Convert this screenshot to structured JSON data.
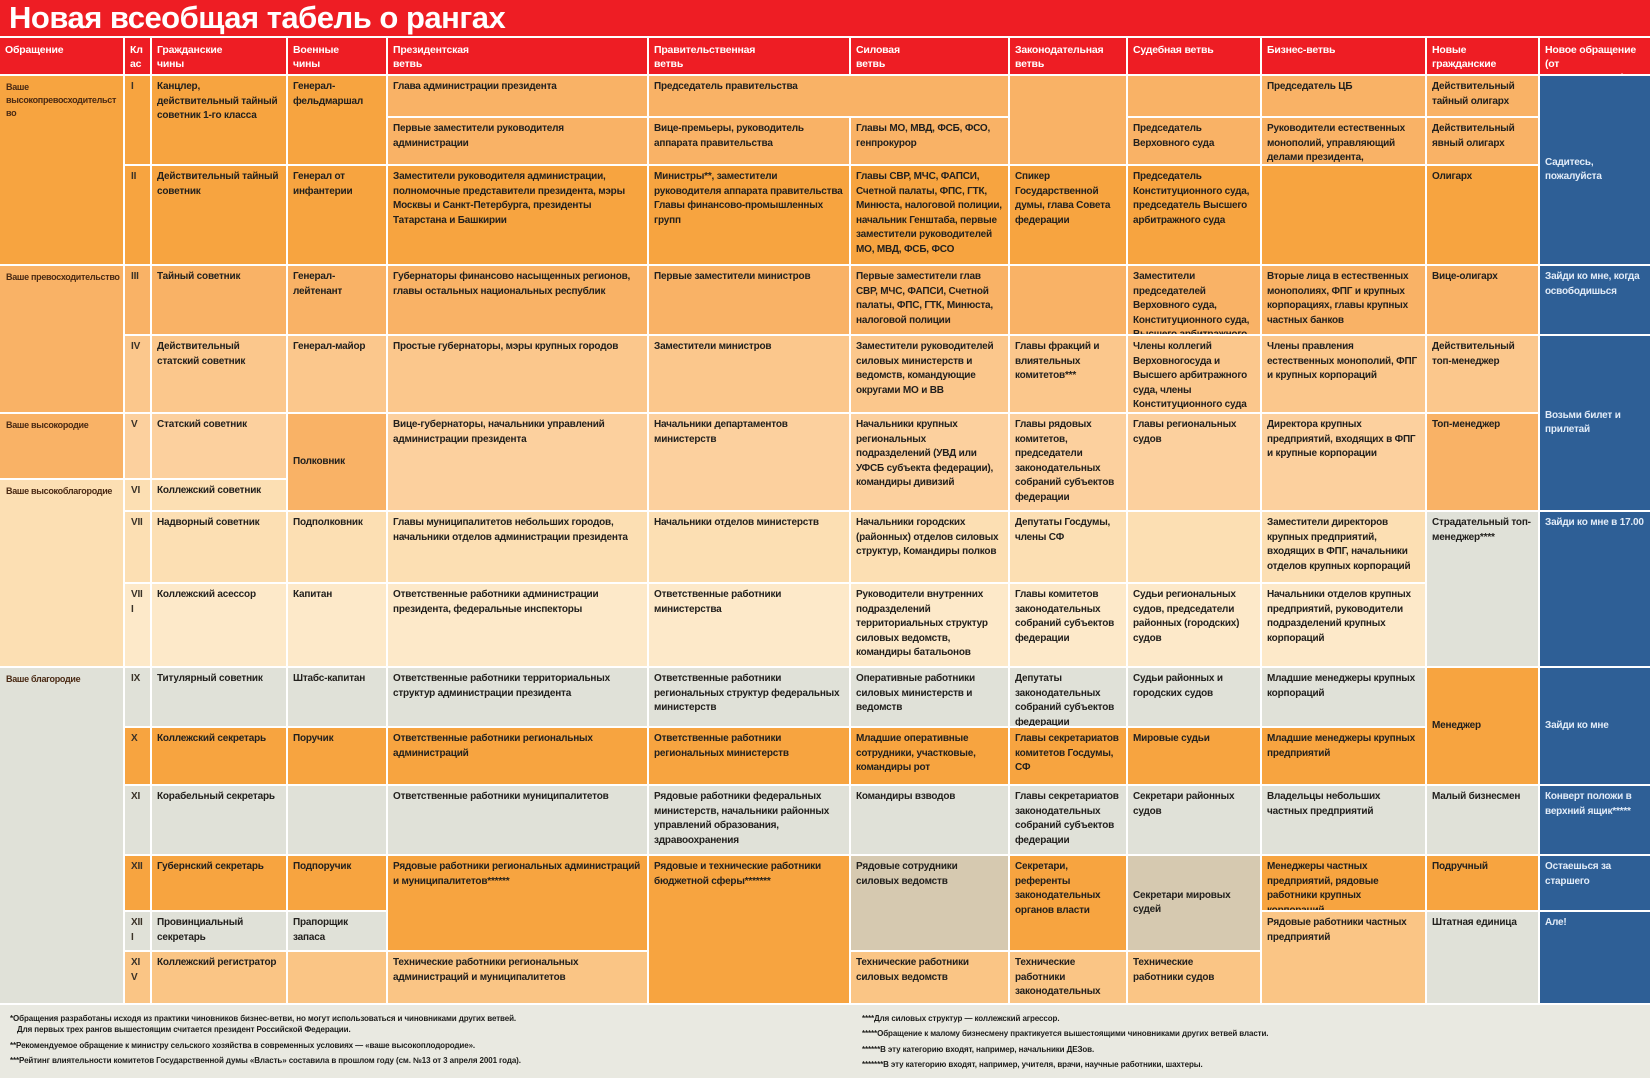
{
  "title": "Новая всеобщая табель о рангах",
  "colors": {
    "tones": {
      "red": "#EE1D24",
      "o1": "#F7A440",
      "o2": "#F9B266",
      "o3": "#FBC78C",
      "o4": "#FCD09E",
      "o5": "#FCDFB3",
      "o6": "#FDE9C9",
      "ox": "#FAC585",
      "gray": "#E0E1D8",
      "tan": "#D6C9B0",
      "blue": "#2E5F96"
    },
    "header_text": "#FFFFFF",
    "blue_text": "#E2ECF8"
  },
  "columns": [
    {
      "id": "obraschenie",
      "label": "Обращение"
    },
    {
      "id": "klass-china",
      "label": "Класс\nчина"
    },
    {
      "id": "grazhdanskie-chiny",
      "label": "Гражданские\nчины"
    },
    {
      "id": "voennye-chiny",
      "label": "Военные\nчины"
    },
    {
      "id": "prezidentskaya-vetv",
      "label": "Президентская\nветвь"
    },
    {
      "id": "pravitelstvennaya-vetv",
      "label": "Правительственная\nветвь"
    },
    {
      "id": "silovaya-vetv",
      "label": "Силовая\nветвь"
    },
    {
      "id": "zakonodatelnaya-vetv",
      "label": "Законодательная\nветвь"
    },
    {
      "id": "sudebnaya-vetv",
      "label": "Судебная ветвь"
    },
    {
      "id": "biznes-vetv",
      "label": "Бизнес-ветвь"
    },
    {
      "id": "novye-grazhdanskie-chiny",
      "label": "Новые гражданские\nчины"
    },
    {
      "id": "novoe-obraschenie",
      "label": "Новое обращение\n(от вышестоящего)*"
    }
  ],
  "cells": [
    {
      "c": 1,
      "r": 2,
      "rs": 3,
      "t": "o1",
      "x": "Ваше высокопревосходительство"
    },
    {
      "c": 1,
      "r": 5,
      "rs": 2,
      "t": "o2",
      "x": "Ваше превосходительство"
    },
    {
      "c": 1,
      "r": 7,
      "t": "o2",
      "x": "Ваше высокородие"
    },
    {
      "c": 1,
      "r": 8,
      "rs": 3,
      "t": "o5",
      "x": "Ваше высокоблагородие"
    },
    {
      "c": 1,
      "r": 11,
      "rs": 6,
      "t": "gray",
      "x": "Ваше благородие"
    },
    {
      "c": 2,
      "r": 2,
      "rs": 2,
      "t": "o1",
      "x": "I"
    },
    {
      "c": 2,
      "r": 4,
      "t": "o1",
      "x": "II"
    },
    {
      "c": 2,
      "r": 5,
      "t": "o2",
      "x": "III"
    },
    {
      "c": 2,
      "r": 6,
      "t": "o3",
      "x": "IV"
    },
    {
      "c": 2,
      "r": 7,
      "t": "o4",
      "x": "V"
    },
    {
      "c": 2,
      "r": 8,
      "t": "o5",
      "x": "VI"
    },
    {
      "c": 2,
      "r": 9,
      "t": "o5",
      "x": "VII"
    },
    {
      "c": 2,
      "r": 10,
      "t": "o6",
      "x": "VIII"
    },
    {
      "c": 2,
      "r": 11,
      "t": "gray",
      "x": "IX"
    },
    {
      "c": 2,
      "r": 12,
      "t": "o1",
      "x": "X"
    },
    {
      "c": 2,
      "r": 13,
      "t": "gray",
      "x": "XI"
    },
    {
      "c": 2,
      "r": 14,
      "t": "o1",
      "x": "XII"
    },
    {
      "c": 2,
      "r": 15,
      "t": "gray",
      "x": "XIII"
    },
    {
      "c": 2,
      "r": 16,
      "t": "ox",
      "x": "XIV"
    },
    {
      "c": 3,
      "r": 2,
      "rs": 2,
      "t": "o1",
      "x": "Канцлер, действительный тайный советник 1-го класса"
    },
    {
      "c": 3,
      "r": 4,
      "t": "o1",
      "x": "Действительный тайный советник"
    },
    {
      "c": 3,
      "r": 5,
      "t": "o2",
      "x": "Тайный советник"
    },
    {
      "c": 3,
      "r": 6,
      "t": "o3",
      "x": "Действительный статский советник"
    },
    {
      "c": 3,
      "r": 7,
      "t": "o4",
      "x": "Статский советник"
    },
    {
      "c": 3,
      "r": 8,
      "t": "o5",
      "x": "Коллежский советник"
    },
    {
      "c": 3,
      "r": 9,
      "t": "o5",
      "x": "Надворный советник"
    },
    {
      "c": 3,
      "r": 10,
      "t": "o6",
      "x": "Коллежский асессор"
    },
    {
      "c": 3,
      "r": 11,
      "t": "gray",
      "x": "Титулярный советник"
    },
    {
      "c": 3,
      "r": 12,
      "t": "o1",
      "x": "Коллежский секретарь"
    },
    {
      "c": 3,
      "r": 13,
      "t": "gray",
      "x": "Корабельный секретарь"
    },
    {
      "c": 3,
      "r": 14,
      "t": "o1",
      "x": "Губернский секретарь"
    },
    {
      "c": 3,
      "r": 15,
      "t": "gray",
      "x": "Провинциальный секретарь"
    },
    {
      "c": 3,
      "r": 16,
      "t": "ox",
      "x": "Коллежский регистратор"
    },
    {
      "c": 4,
      "r": 2,
      "rs": 2,
      "t": "o1",
      "x": "Генерал-фельдмаршал"
    },
    {
      "c": 4,
      "r": 4,
      "t": "o1",
      "x": "Генерал от инфантерии"
    },
    {
      "c": 4,
      "r": 5,
      "t": "o2",
      "x": "Генерал-лейтенант"
    },
    {
      "c": 4,
      "r": 6,
      "t": "o3",
      "x": "Генерал-майор"
    },
    {
      "c": 4,
      "r": 7,
      "rs": 2,
      "t": "o2",
      "vc": 1,
      "x": "Полковник"
    },
    {
      "c": 4,
      "r": 9,
      "t": "o5",
      "x": "Подполковник"
    },
    {
      "c": 4,
      "r": 10,
      "t": "o6",
      "x": "Капитан"
    },
    {
      "c": 4,
      "r": 11,
      "t": "gray",
      "x": "Штабс-капитан"
    },
    {
      "c": 4,
      "r": 12,
      "t": "o1",
      "x": "Поручик"
    },
    {
      "c": 4,
      "r": 13,
      "t": "gray",
      "x": ""
    },
    {
      "c": 4,
      "r": 14,
      "t": "o1",
      "x": "Подпоручик"
    },
    {
      "c": 4,
      "r": 15,
      "t": "gray",
      "x": "Прапорщик запаса"
    },
    {
      "c": 4,
      "r": 16,
      "t": "ox",
      "x": ""
    },
    {
      "c": 5,
      "r": 2,
      "t": "o2",
      "x": "Глава администрации президента"
    },
    {
      "c": 5,
      "r": 3,
      "t": "o2",
      "x": "Первые заместители руководителя администрации"
    },
    {
      "c": 5,
      "r": 4,
      "t": "o1",
      "x": "Заместители руководителя администрации, полномочные представители президента, мэры Москвы и Санкт-Петербурга, президенты Татарстана и Башкирии"
    },
    {
      "c": 5,
      "r": 5,
      "t": "o2",
      "x": "Губернаторы финансово насыщенных регионов, главы остальных национальных республик"
    },
    {
      "c": 5,
      "r": 6,
      "t": "o3",
      "x": "Простые губернаторы, мэры крупных городов"
    },
    {
      "c": 5,
      "r": 7,
      "rs": 2,
      "t": "o4",
      "x": "Вице-губернаторы, начальники управлений администрации президента"
    },
    {
      "c": 5,
      "r": 9,
      "t": "o5",
      "x": "Главы муниципалитетов небольших городов, начальники отделов администрации президента"
    },
    {
      "c": 5,
      "r": 10,
      "t": "o6",
      "x": "Ответственные работники администрации президента, федеральные инспекторы"
    },
    {
      "c": 5,
      "r": 11,
      "t": "gray",
      "x": "Ответственные работники территориальных структур администрации президента"
    },
    {
      "c": 5,
      "r": 12,
      "t": "o1",
      "x": "Ответственные работники региональных администраций"
    },
    {
      "c": 5,
      "r": 13,
      "t": "gray",
      "x": "Ответственные работники муниципалитетов"
    },
    {
      "c": 5,
      "r": 14,
      "rs": 2,
      "t": "o1",
      "x": "Рядовые работники региональных администраций и муниципалитетов******"
    },
    {
      "c": 5,
      "r": 16,
      "t": "ox",
      "x": "Технические работники региональных администраций и муниципалитетов"
    },
    {
      "c": 6,
      "r": 2,
      "cs": 2,
      "t": "o2",
      "x": "Председатель правительства"
    },
    {
      "c": 6,
      "r": 3,
      "t": "o2",
      "x": "Вице-премьеры, руководитель аппарата правительства"
    },
    {
      "c": 6,
      "r": 4,
      "t": "o1",
      "x": "Министры**, заместители руководителя аппарата правительства\nГлавы финансово-промышленных групп"
    },
    {
      "c": 6,
      "r": 5,
      "t": "o2",
      "x": "Первые заместители министров"
    },
    {
      "c": 6,
      "r": 6,
      "t": "o3",
      "x": "Заместители министров"
    },
    {
      "c": 6,
      "r": 7,
      "rs": 2,
      "t": "o4",
      "x": "Начальники департаментов министерств"
    },
    {
      "c": 6,
      "r": 9,
      "t": "o5",
      "x": "Начальники отделов министерств"
    },
    {
      "c": 6,
      "r": 10,
      "t": "o6",
      "x": "Ответственные работники министерства"
    },
    {
      "c": 6,
      "r": 11,
      "t": "gray",
      "x": "Ответственные работники региональных структур федеральных министерств"
    },
    {
      "c": 6,
      "r": 12,
      "t": "o1",
      "x": "Ответственные работники региональных министерств"
    },
    {
      "c": 6,
      "r": 13,
      "t": "gray",
      "x": "Рядовые работники федеральных министерств, начальники районных управлений образования, здравоохранения"
    },
    {
      "c": 6,
      "r": 14,
      "rs": 3,
      "t": "o1",
      "x": "Рядовые и технические работники бюджетной сферы*******"
    },
    {
      "c": 7,
      "r": 3,
      "t": "o2",
      "x": "Главы МО, МВД, ФСБ, ФСО, генпрокурор"
    },
    {
      "c": 7,
      "r": 4,
      "t": "o1",
      "x": "Главы СВР, МЧС, ФАПСИ, Счетной палаты, ФПС, ГТК, Минюста, налоговой полиции, начальник Генштаба, первые заместители руководителей МО, МВД, ФСБ, ФСО"
    },
    {
      "c": 7,
      "r": 5,
      "t": "o2",
      "x": "Первые заместители глав СВР, МЧС, ФАПСИ, Счетной палаты, ФПС, ГТК, Минюста, налоговой полиции"
    },
    {
      "c": 7,
      "r": 6,
      "t": "o3",
      "x": "Заместители руководителей силовых министерств и ведомств, командующие округами МО и ВВ"
    },
    {
      "c": 7,
      "r": 7,
      "rs": 2,
      "t": "o4",
      "x": "Начальники крупных региональных подразделений (УВД или УФСБ субъекта федерации), командиры дивизий"
    },
    {
      "c": 7,
      "r": 9,
      "t": "o5",
      "x": "Начальники городских (районных) отделов силовых структур, Командиры полков"
    },
    {
      "c": 7,
      "r": 10,
      "t": "o6",
      "x": "Руководители внутренних подразделений территориальных структур силовых ведомств, командиры батальонов"
    },
    {
      "c": 7,
      "r": 11,
      "t": "gray",
      "x": "Оперативные работники силовых министерств и ведомств"
    },
    {
      "c": 7,
      "r": 12,
      "t": "o1",
      "x": "Младшие оперативные сотрудники, участковые, командиры рот"
    },
    {
      "c": 7,
      "r": 13,
      "t": "gray",
      "x": "Командиры взводов"
    },
    {
      "c": 7,
      "r": 14,
      "rs": 2,
      "t": "tan",
      "x": "Рядовые сотрудники силовых ведомств"
    },
    {
      "c": 7,
      "r": 16,
      "t": "ox",
      "x": "Технические работники силовых ведомств"
    },
    {
      "c": 8,
      "r": 2,
      "rs": 2,
      "t": "o2",
      "x": ""
    },
    {
      "c": 8,
      "r": 4,
      "t": "o1",
      "x": "Спикер Государственной думы, глава Совета федерации"
    },
    {
      "c": 8,
      "r": 5,
      "t": "o2",
      "x": ""
    },
    {
      "c": 8,
      "r": 6,
      "t": "o3",
      "x": "Главы фракций и влиятельных комитетов***"
    },
    {
      "c": 8,
      "r": 7,
      "rs": 2,
      "t": "o4",
      "x": "Главы рядовых комитетов, председатели законодательных собраний субъектов федерации"
    },
    {
      "c": 8,
      "r": 9,
      "t": "o5",
      "x": "Депутаты Госдумы, члены СФ"
    },
    {
      "c": 8,
      "r": 10,
      "t": "o6",
      "x": "Главы комитетов законодательных собраний субъектов федерации"
    },
    {
      "c": 8,
      "r": 11,
      "t": "gray",
      "x": "Депутаты законодательных собраний субъектов федерации"
    },
    {
      "c": 8,
      "r": 12,
      "t": "o1",
      "x": "Главы секретариатов комитетов Госдумы, СФ"
    },
    {
      "c": 8,
      "r": 13,
      "t": "gray",
      "x": "Главы секретариатов законодательных собраний субъектов федерации"
    },
    {
      "c": 8,
      "r": 14,
      "rs": 2,
      "t": "o1",
      "x": "Секретари, референты законодательных органов власти"
    },
    {
      "c": 8,
      "r": 16,
      "t": "ox",
      "x": "Технические работники законодательных органов власти"
    },
    {
      "c": 9,
      "r": 2,
      "t": "o2",
      "x": ""
    },
    {
      "c": 9,
      "r": 3,
      "t": "o2",
      "x": "Председатель Верховного суда"
    },
    {
      "c": 9,
      "r": 4,
      "t": "o1",
      "x": "Председатель Конституционного суда, председатель Высшего арбитражного суда"
    },
    {
      "c": 9,
      "r": 5,
      "t": "o2",
      "x": "Заместители председателей Верховного суда, Конституционного суда, Высшего арбитражного суда"
    },
    {
      "c": 9,
      "r": 6,
      "t": "o3",
      "x": "Члены коллегий Верховногосуда и Высшего арбитражного суда, члены Конституционного суда"
    },
    {
      "c": 9,
      "r": 7,
      "rs": 2,
      "t": "o4",
      "x": "Главы региональных судов"
    },
    {
      "c": 9,
      "r": 9,
      "t": "o5",
      "x": ""
    },
    {
      "c": 9,
      "r": 10,
      "t": "o6",
      "x": "Судьи региональных судов, председатели районных (городских) судов"
    },
    {
      "c": 9,
      "r": 11,
      "t": "gray",
      "x": "Судьи районных и городских судов"
    },
    {
      "c": 9,
      "r": 12,
      "t": "o1",
      "x": "Мировые судьи"
    },
    {
      "c": 9,
      "r": 13,
      "t": "gray",
      "x": "Секретари районных судов"
    },
    {
      "c": 9,
      "r": 14,
      "rs": 2,
      "t": "tan",
      "vc": 1,
      "x": "Секретари мировых судей"
    },
    {
      "c": 9,
      "r": 16,
      "t": "ox",
      "x": "Технические\nработники судов"
    },
    {
      "c": 10,
      "r": 2,
      "t": "o2",
      "x": "Председатель ЦБ"
    },
    {
      "c": 10,
      "r": 3,
      "t": "o2",
      "x": "Руководители естественных монополий, управляющий делами президента, председатель Сбербанка"
    },
    {
      "c": 10,
      "r": 4,
      "t": "o1",
      "x": ""
    },
    {
      "c": 10,
      "r": 5,
      "t": "o2",
      "x": "Вторые лица в естественных монополиях, ФПГ и крупных корпорациях, главы крупных частных банков"
    },
    {
      "c": 10,
      "r": 6,
      "t": "o3",
      "x": "Члены правления естественных монополий, ФПГ и крупных корпораций"
    },
    {
      "c": 10,
      "r": 7,
      "rs": 2,
      "t": "o4",
      "x": "Директора крупных предприятий, входящих в ФПГ и крупные корпорации"
    },
    {
      "c": 10,
      "r": 9,
      "t": "o5",
      "x": "Заместители директоров крупных предприятий, входящих в ФПГ, начальники отделов крупных корпораций"
    },
    {
      "c": 10,
      "r": 10,
      "t": "o6",
      "x": "Начальники отделов крупных предприятий, руководители подразделений крупных корпораций"
    },
    {
      "c": 10,
      "r": 11,
      "t": "gray",
      "x": "Младшие менеджеры крупных корпораций"
    },
    {
      "c": 10,
      "r": 12,
      "t": "o1",
      "x": "Младшие менеджеры крупных предприятий"
    },
    {
      "c": 10,
      "r": 13,
      "t": "gray",
      "x": "Владельцы небольших частных предприятий"
    },
    {
      "c": 10,
      "r": 14,
      "t": "o1",
      "x": "Менеджеры частных предприятий, рядовые работники крупных корпораций"
    },
    {
      "c": 10,
      "r": 15,
      "rs": 2,
      "t": "ox",
      "x": "Рядовые работники частных предприятий"
    },
    {
      "c": 11,
      "r": 2,
      "t": "o2",
      "x": "Действительный тайный олигарх"
    },
    {
      "c": 11,
      "r": 3,
      "t": "o2",
      "x": "Действительный явный олигарх"
    },
    {
      "c": 11,
      "r": 4,
      "t": "o1",
      "x": "Олигарх"
    },
    {
      "c": 11,
      "r": 5,
      "t": "o2",
      "x": "Вице-олигарх"
    },
    {
      "c": 11,
      "r": 6,
      "t": "o3",
      "x": "Действительный топ-менеджер"
    },
    {
      "c": 11,
      "r": 7,
      "rs": 2,
      "t": "o2",
      "x": "Топ-менеджер"
    },
    {
      "c": 11,
      "r": 9,
      "rs": 2,
      "t": "gray",
      "x": "Страдательный топ-менеджер****"
    },
    {
      "c": 11,
      "r": 11,
      "rs": 2,
      "t": "o1",
      "vc": 1,
      "x": "Менеджер"
    },
    {
      "c": 11,
      "r": 13,
      "t": "gray",
      "x": "Малый бизнесмен"
    },
    {
      "c": 11,
      "r": 14,
      "t": "o1",
      "x": "Подручный"
    },
    {
      "c": 11,
      "r": 15,
      "rs": 2,
      "t": "gray",
      "x": "Штатная единица"
    },
    {
      "c": 12,
      "r": 2,
      "rs": 3,
      "t": "blue",
      "vc": 1,
      "x": "Садитесь, пожалуйста"
    },
    {
      "c": 12,
      "r": 5,
      "t": "blue",
      "x": "Зайди ко мне, когда освободишься"
    },
    {
      "c": 12,
      "r": 6,
      "rs": 3,
      "t": "blue",
      "vc": 1,
      "x": "Возьми билет и прилетай"
    },
    {
      "c": 12,
      "r": 9,
      "rs": 2,
      "t": "blue",
      "x": "Зайди ко мне в 17.00"
    },
    {
      "c": 12,
      "r": 11,
      "rs": 2,
      "t": "blue",
      "vc": 1,
      "x": "Зайди ко мне"
    },
    {
      "c": 12,
      "r": 13,
      "t": "blue",
      "x": "Конверт положи в верхний ящик*****"
    },
    {
      "c": 12,
      "r": 14,
      "t": "blue",
      "x": "Остаешься за старшего"
    },
    {
      "c": 12,
      "r": 15,
      "rs": 2,
      "t": "blue",
      "x": "Але!"
    }
  ],
  "footnotes": {
    "left": [
      {
        "text": "*Обращения разработаны исходя из практики чиновников бизнес-ветви, но могут использоваться и чиновниками других ветвей.",
        "cont": false
      },
      {
        "text": "Для первых трех рангов вышестоящим считается президент Российской Федерации.",
        "cont": true
      },
      {
        "text": "**Рекомендуемое обращение к министру сельского хозяйства в современных условиях — «ваше высокоплодородие».",
        "cont": false
      },
      {
        "text": "***Рейтинг влиятельности комитетов Государственной думы «Власть» составила в прошлом году (см. №13 от 3 апреля 2001 года).",
        "cont": false
      }
    ],
    "right": [
      {
        "text": "****Для силовых структур — коллежский агрессор.",
        "cont": false
      },
      {
        "text": "*****Обращение к малому бизнесмену практикуется вышестоящими чиновниками других ветвей власти.",
        "cont": false
      },
      {
        "text": "******В эту категорию входят, например, начальники ДЕЗов.",
        "cont": false
      },
      {
        "text": "*******В эту категорию входят, например, учителя, врачи, научные работники, шахтеры.",
        "cont": false
      }
    ]
  }
}
